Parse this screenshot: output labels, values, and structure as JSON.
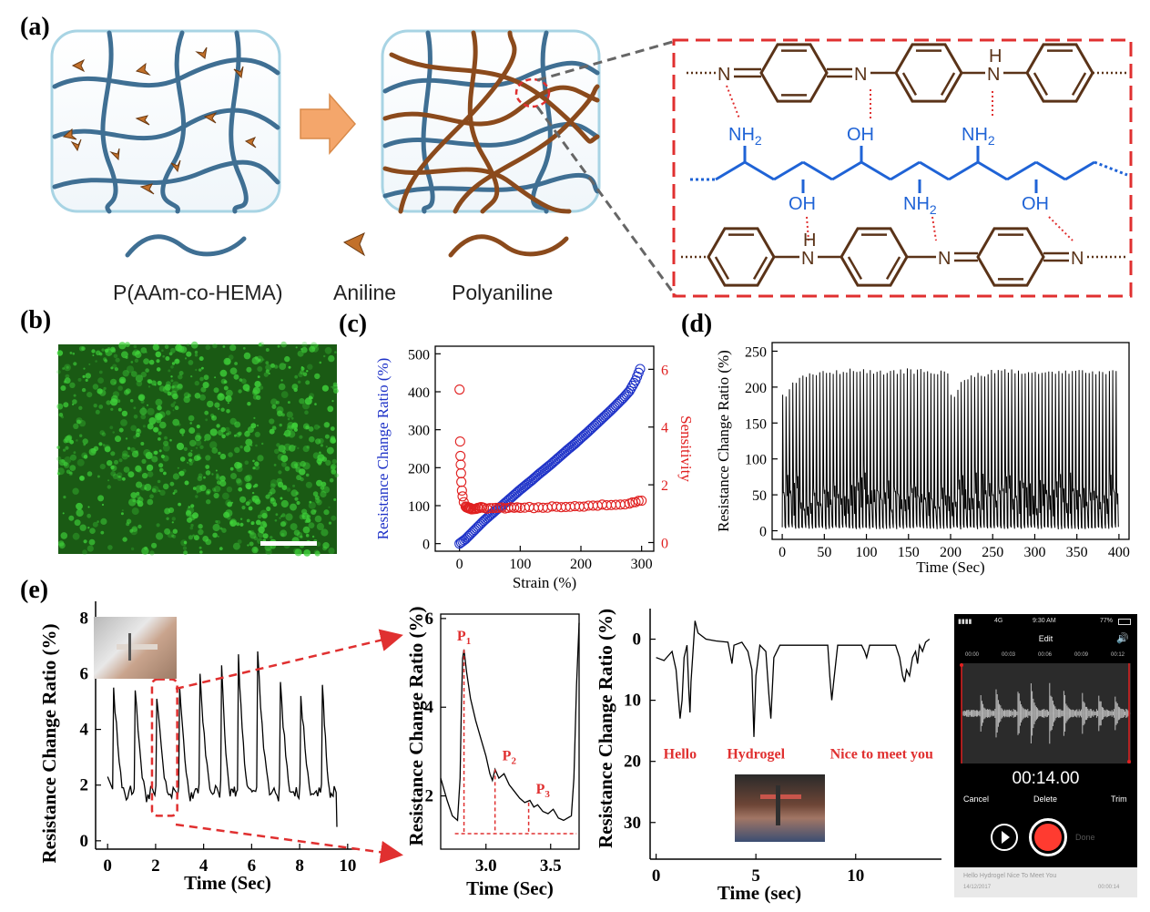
{
  "panel_labels": {
    "a": "(a)",
    "b": "(b)",
    "c": "(c)",
    "d": "(d)",
    "e": "(e)"
  },
  "panel_a": {
    "legend": {
      "polymer": "P(AAm-co-HEMA)",
      "monomer": "Aniline",
      "product": "Polyaniline"
    },
    "chem_labels": {
      "nh2": "NH",
      "nh2_sub": "2",
      "oh": "OH",
      "n": "N",
      "h": "H"
    },
    "colors": {
      "hydrogel": "#3f6f93",
      "pani": "#8b4a1c",
      "chem_brown": "#5a3318",
      "chem_blue": "#1f63d6",
      "dash_red": "#e03030"
    }
  },
  "panel_b": {
    "colors": {
      "base": "#1a5a14",
      "bright": "#3fd23a"
    }
  },
  "panel_e_middle": {
    "peaks": [
      {
        "label": "P",
        "sub": "1"
      },
      {
        "label": "P",
        "sub": "2"
      },
      {
        "label": "P",
        "sub": "3"
      }
    ]
  },
  "panel_e_right": {
    "words": [
      "Hello",
      "Hydrogel",
      "Nice to meet you"
    ]
  },
  "phone": {
    "status": {
      "carrier": "4G",
      "time": "9:30 AM",
      "battery": "77%"
    },
    "title": "Edit",
    "timeline": [
      "00:00",
      "00:03",
      "00:06",
      "00:09",
      "00:12"
    ],
    "elapsed": "00:14.00",
    "buttons": {
      "cancel": "Cancel",
      "delete": "Delete",
      "trim": "Trim",
      "done": "Done"
    },
    "recording": {
      "name": "Hello Hydrogel Nice To Meet You",
      "date": "14/12/2017",
      "duration": "00:00:14"
    }
  },
  "chart_data": [
    {
      "id": "c",
      "type": "scatter",
      "xlabel": "Strain (%)",
      "ylabel": "Resistance Change Ratio (%)",
      "y2label": "Sensitivity",
      "xlim": [
        -40,
        320
      ],
      "ylim": [
        -20,
        520
      ],
      "y2lim": [
        -0.3,
        6.8
      ],
      "xticks": [
        0,
        100,
        200,
        300
      ],
      "yticks": [
        0,
        100,
        200,
        300,
        400,
        500
      ],
      "y2ticks": [
        0,
        2,
        4,
        6
      ],
      "series": [
        {
          "axis": "left",
          "color": "#1f33c8",
          "x": [
            0,
            10,
            20,
            30,
            40,
            50,
            60,
            70,
            80,
            90,
            100,
            110,
            120,
            130,
            140,
            150,
            160,
            170,
            180,
            190,
            200,
            210,
            220,
            230,
            240,
            250,
            260,
            270,
            280,
            290,
            300
          ],
          "y": [
            0,
            12,
            28,
            44,
            60,
            74,
            88,
            100,
            114,
            128,
            142,
            155,
            168,
            182,
            195,
            208,
            222,
            236,
            250,
            263,
            278,
            292,
            307,
            322,
            337,
            352,
            368,
            384,
            402,
            430,
            470
          ]
        },
        {
          "axis": "right",
          "color": "#e02020",
          "x": [
            0,
            1,
            1.5,
            2,
            2.5,
            3,
            4,
            5,
            7,
            10,
            15,
            20,
            30,
            40,
            60,
            80,
            100,
            130,
            160,
            190,
            220,
            250,
            280,
            300
          ],
          "y": [
            5.3,
            3.5,
            3.0,
            2.7,
            2.4,
            2.1,
            1.8,
            1.6,
            1.4,
            1.25,
            1.2,
            1.15,
            1.2,
            1.2,
            1.2,
            1.2,
            1.2,
            1.22,
            1.24,
            1.26,
            1.28,
            1.3,
            1.35,
            1.45
          ]
        }
      ]
    },
    {
      "id": "d",
      "type": "line",
      "xlabel": "Time (Sec)",
      "ylabel": "Resistance Change Ratio (%)",
      "xlim": [
        -12,
        412
      ],
      "ylim": [
        -12,
        262
      ],
      "xticks": [
        0,
        50,
        100,
        150,
        200,
        250,
        300,
        350,
        400
      ],
      "yticks": [
        0,
        50,
        100,
        150,
        200,
        250
      ],
      "cycle_period": 4.0,
      "peak_values": [
        190,
        188,
        200,
        212,
        210,
        215,
        218,
        220,
        222,
        220,
        218,
        222,
        224,
        222,
        226,
        224,
        225,
        223,
        225,
        224,
        226,
        225,
        224,
        225,
        226,
        224,
        225,
        224,
        225,
        226,
        224,
        225,
        226,
        225,
        224,
        225,
        224,
        226,
        225,
        224,
        225,
        226,
        225,
        224,
        226,
        225,
        224,
        225,
        226,
        225
      ]
    },
    {
      "id": "e1",
      "type": "line",
      "xlabel": "Time (Sec)",
      "ylabel": "Resistance Change Ratio (%)",
      "xlim": [
        -0.5,
        10.5
      ],
      "ylim": [
        -0.3,
        8.6
      ],
      "xticks": [
        0,
        2,
        4,
        6,
        8,
        10
      ],
      "yticks": [
        0,
        2,
        4,
        6,
        8
      ],
      "peaks": [
        [
          0.25,
          5.5
        ],
        [
          1.15,
          5.4
        ],
        [
          2.05,
          5.1
        ],
        [
          3.0,
          5.5
        ],
        [
          3.85,
          6.0
        ],
        [
          4.75,
          6.3
        ],
        [
          5.45,
          6.7
        ],
        [
          6.25,
          6.8
        ],
        [
          7.2,
          5.7
        ],
        [
          8.05,
          5.2
        ],
        [
          8.95,
          5.6
        ]
      ],
      "baseline": 1.3
    },
    {
      "id": "e2",
      "type": "line",
      "xlabel": "Time (Sec)",
      "ylabel": "Resistance Change Ratio (%)",
      "xlim": [
        2.65,
        3.72
      ],
      "ylim": [
        0.8,
        6.1
      ],
      "xticks": [
        3.0,
        3.5
      ],
      "xtick_labels": [
        "3.0",
        "3.5"
      ],
      "yticks": [
        2,
        4,
        6
      ],
      "points": [
        [
          2.65,
          2.4
        ],
        [
          2.7,
          1.9
        ],
        [
          2.74,
          1.55
        ],
        [
          2.78,
          1.45
        ],
        [
          2.8,
          2.4
        ],
        [
          2.81,
          4.0
        ],
        [
          2.82,
          5.1
        ],
        [
          2.83,
          5.3
        ],
        [
          2.85,
          4.8
        ],
        [
          2.88,
          4.2
        ],
        [
          2.92,
          3.7
        ],
        [
          2.96,
          3.3
        ],
        [
          3.0,
          2.9
        ],
        [
          3.03,
          2.5
        ],
        [
          3.05,
          2.35
        ],
        [
          3.07,
          2.6
        ],
        [
          3.1,
          2.4
        ],
        [
          3.14,
          2.5
        ],
        [
          3.18,
          2.25
        ],
        [
          3.22,
          2.1
        ],
        [
          3.26,
          1.95
        ],
        [
          3.3,
          1.85
        ],
        [
          3.34,
          1.9
        ],
        [
          3.37,
          1.75
        ],
        [
          3.4,
          1.8
        ],
        [
          3.44,
          1.65
        ],
        [
          3.48,
          1.6
        ],
        [
          3.52,
          1.7
        ],
        [
          3.56,
          1.5
        ],
        [
          3.6,
          1.45
        ],
        [
          3.63,
          1.5
        ],
        [
          3.66,
          1.55
        ],
        [
          3.68,
          2.4
        ],
        [
          3.7,
          4.5
        ],
        [
          3.72,
          5.9
        ]
      ],
      "peak_marks": [
        [
          2.83,
          5.3
        ],
        [
          3.07,
          2.6
        ],
        [
          3.33,
          1.85
        ]
      ],
      "baseline": 1.15
    },
    {
      "id": "e3",
      "type": "line",
      "xlabel": "Time (sec)",
      "ylabel": "Resistance Change Ratio (%)",
      "xlim": [
        -0.3,
        14.3
      ],
      "ylim": [
        -5,
        36
      ],
      "inverted": true,
      "xticks": [
        0,
        5,
        10
      ],
      "yticks": [
        0,
        10,
        20,
        30
      ],
      "points": [
        [
          0,
          3
        ],
        [
          0.4,
          3.5
        ],
        [
          0.8,
          2
        ],
        [
          1.0,
          5
        ],
        [
          1.1,
          9
        ],
        [
          1.2,
          13
        ],
        [
          1.3,
          10
        ],
        [
          1.4,
          3
        ],
        [
          1.55,
          1
        ],
        [
          1.65,
          9
        ],
        [
          1.7,
          12
        ],
        [
          1.75,
          7
        ],
        [
          1.85,
          2
        ],
        [
          1.95,
          -3
        ],
        [
          2.1,
          -1
        ],
        [
          2.5,
          0
        ],
        [
          3,
          0.3
        ],
        [
          3.6,
          0.5
        ],
        [
          3.8,
          4
        ],
        [
          3.9,
          1
        ],
        [
          4.3,
          0.5
        ],
        [
          4.6,
          2
        ],
        [
          4.8,
          5
        ],
        [
          4.9,
          16
        ],
        [
          5.0,
          6
        ],
        [
          5.2,
          1
        ],
        [
          5.5,
          2
        ],
        [
          5.65,
          9
        ],
        [
          5.75,
          13
        ],
        [
          5.9,
          3
        ],
        [
          6.2,
          1
        ],
        [
          7,
          1
        ],
        [
          8,
          1
        ],
        [
          8.6,
          1
        ],
        [
          8.7,
          6
        ],
        [
          8.8,
          10
        ],
        [
          8.9,
          7
        ],
        [
          9.1,
          1
        ],
        [
          9.8,
          1
        ],
        [
          10.3,
          1
        ],
        [
          10.45,
          2
        ],
        [
          10.55,
          3
        ],
        [
          10.7,
          1
        ],
        [
          11.5,
          1
        ],
        [
          12.0,
          1
        ],
        [
          12.2,
          3
        ],
        [
          12.35,
          6
        ],
        [
          12.45,
          7
        ],
        [
          12.55,
          5
        ],
        [
          12.7,
          6
        ],
        [
          12.85,
          3
        ],
        [
          13.0,
          2
        ],
        [
          13.1,
          4
        ],
        [
          13.2,
          1
        ],
        [
          13.35,
          2
        ],
        [
          13.5,
          0.5
        ],
        [
          13.7,
          0
        ]
      ]
    }
  ]
}
